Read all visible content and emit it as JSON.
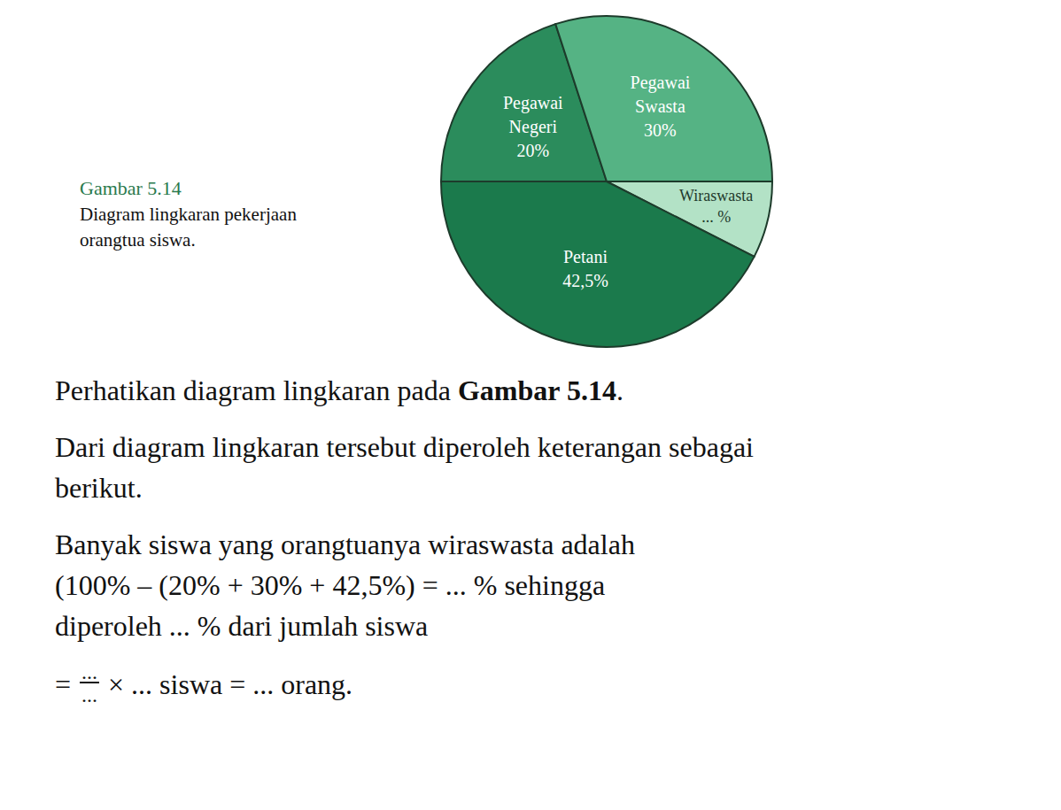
{
  "chart_data": {
    "type": "pie",
    "categories": [
      "Pegawai Negeri",
      "Pegawai Swasta",
      "Wiraswasta",
      "Petani"
    ],
    "values": [
      20,
      30,
      7.5,
      42.5
    ],
    "value_labels": [
      "20%",
      "30%",
      "... %",
      "42,5%"
    ],
    "colors": [
      "#2b8c5c",
      "#55b384",
      "#b3e2c6",
      "#1b7a4c"
    ],
    "data_labels": true
  },
  "figure_label": "Gambar 5.14",
  "caption": [
    "Diagram lingkaran pekerjaan",
    "orangtua siswa."
  ],
  "body": [
    [
      [
        {
          "text": "Perhatikan diagram lingkaran pada "
        },
        {
          "text": "Gambar 5.14",
          "bold": true
        },
        {
          "text": "."
        }
      ]
    ],
    [
      [
        {
          "text": "Dari diagram lingkaran tersebut diperoleh keterangan sebagai"
        }
      ],
      [
        {
          "text": "berikut."
        }
      ]
    ],
    [
      [
        {
          "text": "Banyak siswa yang orangtuanya wiraswasta adalah"
        }
      ],
      [
        {
          "text": "(100% – (20% + 30% + 42,5%) = ... % sehingga"
        }
      ],
      [
        {
          "text": "diperoleh ... % dari jumlah siswa"
        }
      ]
    ]
  ],
  "formula": {
    "prefix": "=",
    "numerator": "...",
    "denominator": "...",
    "suffix": "× ... siswa = ... orang."
  }
}
